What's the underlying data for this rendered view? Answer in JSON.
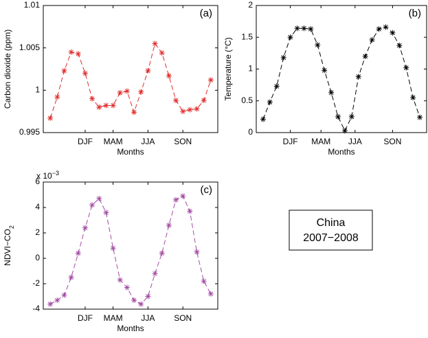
{
  "chart_data": [
    {
      "type": "line",
      "label": "(a)",
      "xlabel": "Months",
      "ylabel": "Carbon dioxide (ppm)",
      "color": "#e02a2a",
      "x": [
        1,
        2,
        3,
        4,
        5,
        6,
        7,
        8,
        9,
        10,
        11,
        12,
        13,
        14,
        15,
        16,
        17,
        18,
        19,
        20,
        21,
        22,
        23,
        24
      ],
      "values": [
        0.9967,
        0.9992,
        1.0023,
        1.0045,
        1.0043,
        1.002,
        0.999,
        0.998,
        0.9982,
        0.9982,
        0.9997,
        0.9999,
        0.9974,
        0.9998,
        1.0023,
        1.0055,
        1.0044,
        1.0017,
        0.9988,
        0.9975,
        0.9977,
        0.9978,
        0.9988,
        1.0012
      ],
      "xlim": [
        0,
        25
      ],
      "xticks": [
        {
          "value": 6,
          "label": "DJF"
        },
        {
          "value": 10,
          "label": "MAM"
        },
        {
          "value": 15,
          "label": "JJA"
        },
        {
          "value": 20,
          "label": "SON"
        }
      ],
      "ylim": [
        0.995,
        1.01
      ],
      "yticks": [
        0.995,
        1,
        1.005,
        1.01
      ]
    },
    {
      "type": "line",
      "label": "(b)",
      "xlabel": "Months",
      "ylabel": "Temperature (°C)",
      "color": "#000000",
      "x": [
        1,
        2,
        3,
        4,
        5,
        6,
        7,
        8,
        9,
        10,
        11,
        12,
        13,
        14,
        15,
        16,
        17,
        18,
        19,
        20,
        21,
        22,
        23,
        24
      ],
      "values": [
        0.21,
        0.48,
        0.73,
        1.18,
        1.5,
        1.64,
        1.64,
        1.63,
        1.38,
        0.98,
        0.63,
        0.25,
        0.03,
        0.25,
        0.88,
        1.2,
        1.46,
        1.63,
        1.66,
        1.57,
        1.37,
        1.02,
        0.55,
        0.24
      ],
      "xlim": [
        0,
        25
      ],
      "xticks": [
        {
          "value": 5,
          "label": "DJF"
        },
        {
          "value": 9.5,
          "label": "MAM"
        },
        {
          "value": 14.5,
          "label": "JJA"
        },
        {
          "value": 20,
          "label": "SON"
        }
      ],
      "ylim": [
        0,
        2
      ],
      "yticks": [
        0,
        0.5,
        1,
        1.5,
        2
      ]
    },
    {
      "type": "line",
      "label": "(c)",
      "xlabel": "Months",
      "ylabel": "NDVI−CO",
      "ylabel_sub": "2",
      "multiplier": "x 10",
      "multiplier_exp": "−3",
      "color": "#a24aa2",
      "x": [
        1,
        2,
        3,
        4,
        5,
        6,
        7,
        8,
        9,
        10,
        11,
        12,
        13,
        14,
        15,
        16,
        17,
        18,
        19,
        20,
        21,
        22,
        23,
        24
      ],
      "values": [
        -3.6,
        -3.3,
        -2.9,
        -1.5,
        0.4,
        2.4,
        4.2,
        4.7,
        3.6,
        0.8,
        -1.7,
        -2.3,
        -3.3,
        -3.6,
        -3.0,
        -1.2,
        0.4,
        2.6,
        4.6,
        4.9,
        3.7,
        0.5,
        -1.8,
        -2.8
      ],
      "xlim": [
        0,
        25
      ],
      "xticks": [
        {
          "value": 6,
          "label": "DJF"
        },
        {
          "value": 10,
          "label": "MAM"
        },
        {
          "value": 15,
          "label": "JJA"
        },
        {
          "value": 20,
          "label": "SON"
        }
      ],
      "ylim": [
        -4,
        6
      ],
      "yticks": [
        -4,
        -2,
        0,
        2,
        4,
        6
      ]
    }
  ],
  "text_box": {
    "lines": [
      "China",
      "2007−2008"
    ]
  }
}
